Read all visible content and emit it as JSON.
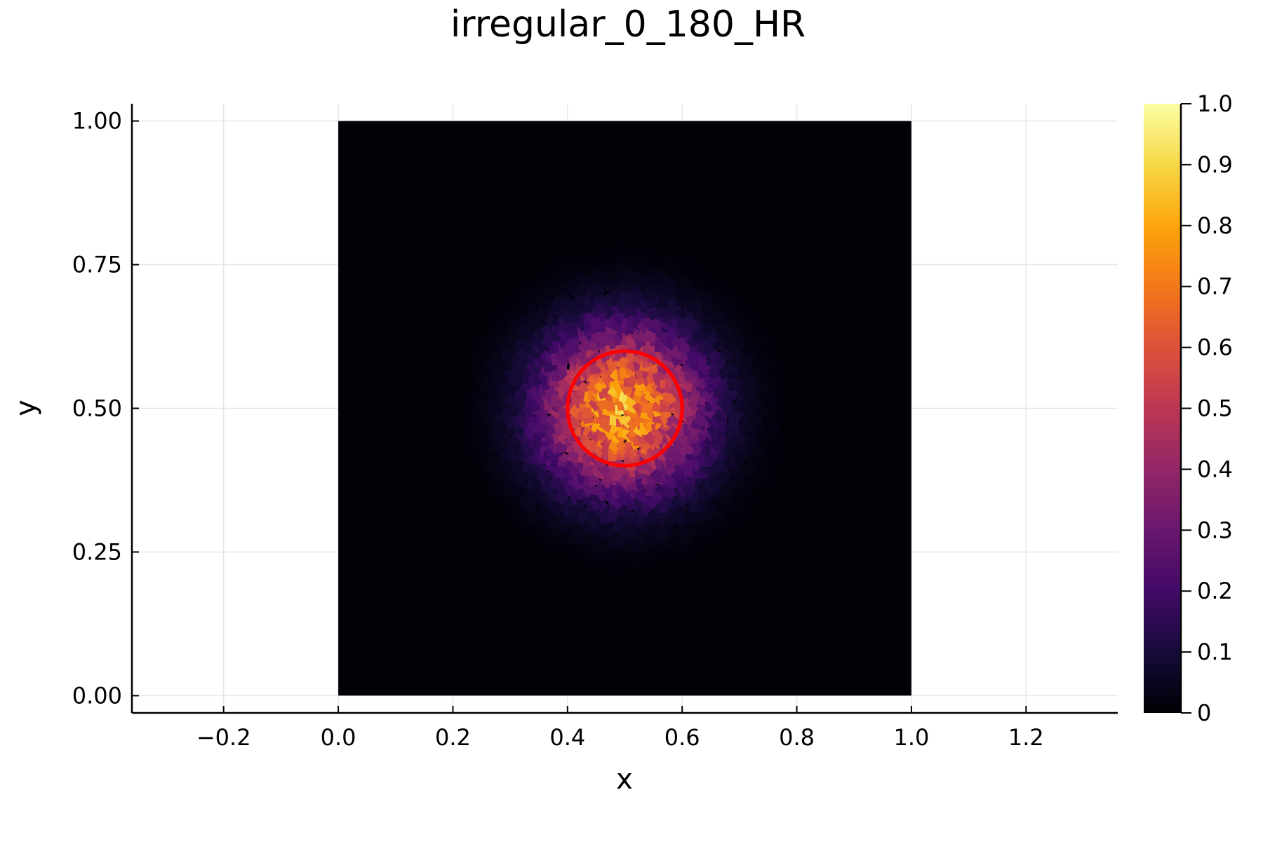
{
  "chart_data": {
    "type": "heatmap",
    "title": "irregular_0_180_HR",
    "xlabel": "x",
    "ylabel": "y",
    "xlim": [
      -0.36,
      1.36
    ],
    "ylim": [
      -0.03,
      1.03
    ],
    "grid": true,
    "xticks": [
      -0.2,
      0.0,
      0.2,
      0.4,
      0.6,
      0.8,
      1.0,
      1.2
    ],
    "xtick_labels": [
      "−0.2",
      "0.0",
      "0.2",
      "0.4",
      "0.6",
      "0.8",
      "1.0",
      "1.2"
    ],
    "yticks": [
      0.0,
      0.25,
      0.5,
      0.75,
      1.0
    ],
    "ytick_labels": [
      "0.00",
      "0.25",
      "0.50",
      "0.75",
      "1.00"
    ],
    "domain": {
      "x": [
        0,
        1
      ],
      "y": [
        0,
        1
      ]
    },
    "field": {
      "description_value": "irregular-cell scalar field, peak near (0.5, 0.5)",
      "center": [
        0.5,
        0.5
      ],
      "peak_value": 0.78,
      "spread": 0.095
    },
    "circle": {
      "center": [
        0.5,
        0.5
      ],
      "radius": 0.1,
      "color": "#ff0000"
    },
    "colorbar": {
      "colormap": "inferno",
      "range": [
        0,
        1
      ],
      "ticks": [
        0,
        0.1,
        0.2,
        0.3,
        0.4,
        0.5,
        0.6,
        0.7,
        0.8,
        0.9,
        1.0
      ],
      "tick_labels": [
        "0",
        "0.1",
        "0.2",
        "0.3",
        "0.4",
        "0.5",
        "0.6",
        "0.7",
        "0.8",
        "0.9",
        "1.0"
      ]
    }
  }
}
